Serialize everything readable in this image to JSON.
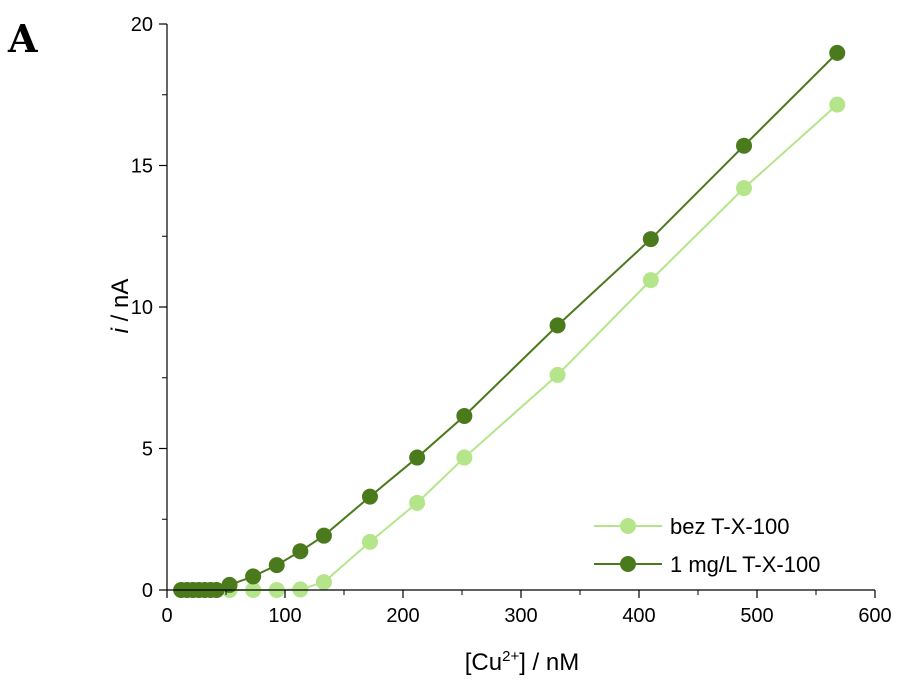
{
  "panel_label": "A",
  "chart_data": {
    "type": "line",
    "xlabel": {
      "pre": "[Cu",
      "sup": "2+",
      "post": "] / nM"
    },
    "ylabel": {
      "var": "i",
      "rest": " / nA"
    },
    "xlim": [
      0,
      600
    ],
    "ylim": [
      0,
      20
    ],
    "x_ticks": [
      0,
      100,
      200,
      300,
      400,
      500,
      600
    ],
    "y_ticks": [
      0,
      5,
      10,
      15,
      20
    ],
    "legend_position": "bottom-right",
    "series": [
      {
        "name": "bez T-X-100",
        "color": "#b5e58b",
        "x": [
          12,
          17,
          22,
          27,
          32,
          37,
          42,
          53,
          73,
          93,
          113,
          133,
          172,
          212,
          252,
          331,
          410,
          489,
          568
        ],
        "y": [
          0,
          0,
          0,
          0,
          0,
          0,
          0,
          0,
          0,
          0,
          0.02,
          0.28,
          1.7,
          3.08,
          4.68,
          7.6,
          10.95,
          14.2,
          17.15
        ]
      },
      {
        "name": "1 mg/L T-X-100",
        "color": "#4a7a1c",
        "x": [
          12,
          17,
          22,
          27,
          32,
          37,
          42,
          53,
          73,
          93,
          113,
          133,
          172,
          212,
          252,
          331,
          410,
          489,
          568
        ],
        "y": [
          0,
          0,
          0,
          0,
          0,
          0,
          0,
          0.18,
          0.48,
          0.88,
          1.37,
          1.92,
          3.3,
          4.68,
          6.15,
          9.35,
          12.4,
          15.7,
          18.98
        ]
      }
    ]
  }
}
